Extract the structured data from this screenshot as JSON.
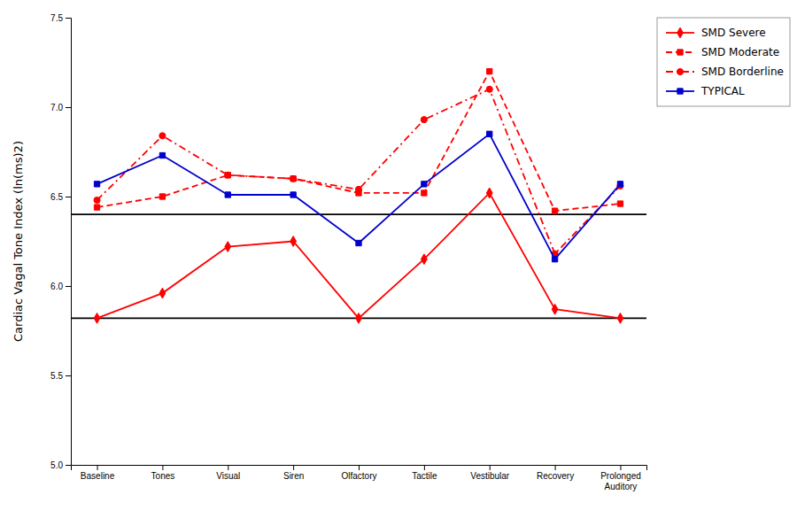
{
  "chart_data": {
    "type": "line",
    "ylabel": "Cardiac Vagal Tone Index (ln(ms)2)",
    "categories": [
      "Baseline",
      "Tones",
      "Visual",
      "Siren",
      "Olfactory",
      "Tactile",
      "Vestibular",
      "Recovery",
      "Prolonged\nAuditory"
    ],
    "series": [
      {
        "name": "SMD Severe",
        "color": "#FF0000",
        "marker": "diamond",
        "line_style": "solid",
        "values": [
          5.82,
          5.96,
          6.22,
          6.25,
          5.82,
          6.15,
          6.52,
          5.87,
          5.82
        ]
      },
      {
        "name": "SMD Moderate",
        "color": "#FF0000",
        "marker": "square",
        "line_style": "dashed",
        "values": [
          6.44,
          6.5,
          6.62,
          6.6,
          6.52,
          6.52,
          7.2,
          6.42,
          6.46
        ]
      },
      {
        "name": "SMD Borderline",
        "color": "#FF0000",
        "marker": "circle",
        "line_style": "dashdot",
        "values": [
          6.48,
          6.84,
          6.62,
          6.6,
          6.54,
          6.93,
          7.1,
          6.18,
          6.56
        ]
      },
      {
        "name": "TYPICAL",
        "color": "#0000CD",
        "marker": "square",
        "line_style": "solid",
        "values": [
          6.57,
          6.73,
          6.51,
          6.51,
          6.24,
          6.57,
          6.85,
          6.15,
          6.57
        ]
      }
    ],
    "reference_lines": [
      {
        "value": 6.4,
        "color": "#000000"
      },
      {
        "value": 5.82,
        "color": "#000000"
      }
    ],
    "ylim": [
      5.0,
      7.5
    ],
    "yticks": [
      {
        "value": 5.0,
        "label": "5.0"
      },
      5.5,
      {
        "value": 6.0,
        "label": "6.0"
      },
      6.5,
      {
        "value": 7.0,
        "label": "7.0"
      },
      7.5
    ],
    "grid": false,
    "legend": "upper right"
  }
}
